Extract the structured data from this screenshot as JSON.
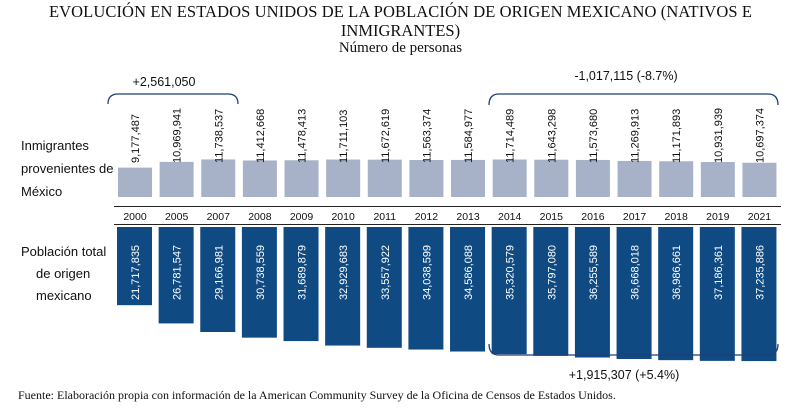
{
  "header": {
    "title_line1": "EVOLUCIÓN EN ESTADOS UNIDOS DE LA POBLACIÓN DE ORIGEN MEXICANO (NATIVOS E",
    "title_line2": "INMIGRANTES)",
    "subtitle": "Número de personas"
  },
  "labels": {
    "immigrants": [
      "Inmigrantes",
      "provenientes de",
      "México"
    ],
    "total": [
      "Población total",
      "de origen",
      "mexicano"
    ]
  },
  "annotations": {
    "immigrants_growth": "+2,561,050",
    "immigrants_decline": "-1,017,115 (-8.7%)",
    "total_growth": "+1,915,307 (+5.4%)"
  },
  "source": "Fuente: Elaboración propia con información de la American Community Survey de la Oficina de Censos de Estados Unidos.",
  "chart_data": {
    "type": "bar",
    "categories": [
      "2000",
      "2005",
      "2007",
      "2008",
      "2009",
      "2010",
      "2011",
      "2012",
      "2013",
      "2014",
      "2015",
      "2016",
      "2017",
      "2018",
      "2019",
      "2021"
    ],
    "series": [
      {
        "name": "Inmigrantes provenientes de México",
        "values": [
          9177487,
          10969941,
          11738537,
          11412668,
          11478413,
          11711103,
          11672619,
          11563374,
          11584977,
          11714489,
          11643298,
          11573680,
          11269913,
          11171893,
          10931939,
          10697374
        ],
        "labels": [
          "9,177,487",
          "10,969,941",
          "11,738,537",
          "11,412,668",
          "11,478,413",
          "11,711,103",
          "11,672,619",
          "11,563,374",
          "11,584,977",
          "11,714,489",
          "11,643,298",
          "11,573,680",
          "11,269,913",
          "11,171,893",
          "10,931,939",
          "10,697,374"
        ]
      },
      {
        "name": "Población total de origen mexicano",
        "values": [
          21717835,
          26781547,
          29166981,
          30738559,
          31689879,
          32929683,
          33557922,
          34038599,
          34586088,
          35320579,
          35797080,
          36255589,
          36668018,
          36986661,
          37186361,
          37235886
        ],
        "labels": [
          "21,717,835",
          "26,781,547",
          "29,166,981",
          "30,738,559",
          "31,689,879",
          "32,929,683",
          "33,557,922",
          "34,038,599",
          "34,586,088",
          "35,320,579",
          "35,797,080",
          "36,255,589",
          "36,668,018",
          "36,986,661",
          "37,186,361",
          "37,235,886"
        ]
      }
    ],
    "colors": {
      "immigrants": "#a7b1c8",
      "total": "#0f4a82",
      "bracket": "#1f3f77"
    }
  }
}
